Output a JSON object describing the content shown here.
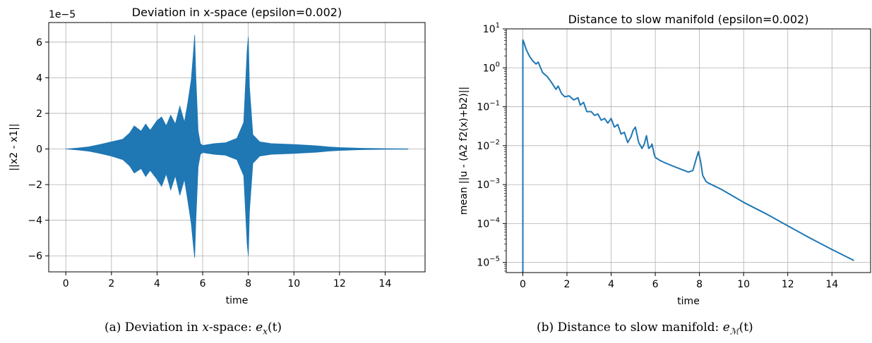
{
  "chart_data": [
    {
      "type": "area",
      "title": "Deviation in x-space (epsilon=0.002)",
      "xlabel": "time",
      "ylabel": "||x2 - x1||",
      "offset_text": "1e−5",
      "xlim": [
        -0.75,
        15.75
      ],
      "ylim": [
        -6.9e-05,
        7.1e-05
      ],
      "xticks": [
        0,
        2,
        4,
        6,
        8,
        10,
        12,
        14
      ],
      "yticks": [
        -6,
        -4,
        -2,
        0,
        2,
        4,
        6
      ],
      "ytick_labels": [
        "−6",
        "−4",
        "−2",
        "0",
        "2",
        "4",
        "6"
      ],
      "grid": true,
      "color": "#1f77b4",
      "series": [
        {
          "x": [
            0,
            0.5,
            1.0,
            1.5,
            2.0,
            2.5,
            2.8,
            3.0,
            3.3,
            3.5,
            3.7,
            4.0,
            4.2,
            4.4,
            4.6,
            4.8,
            5.0,
            5.2,
            5.35,
            5.5,
            5.6,
            5.65,
            5.7,
            5.8,
            5.9,
            6.0,
            6.5,
            7.0,
            7.5,
            7.8,
            7.95,
            8.0,
            8.05,
            8.2,
            8.5,
            9.0,
            10.0,
            11.0,
            11.5,
            12.0,
            13.0,
            14.0,
            15.0
          ],
          "upper": [
            0.0,
            5e-07,
            1.2e-06,
            2.5e-06,
            4e-06,
            5.5e-06,
            9e-06,
            1.3e-05,
            1e-05,
            1.4e-05,
            1.05e-05,
            1.6e-05,
            1.8e-05,
            1.3e-05,
            1.9e-05,
            1.4e-05,
            2.4e-05,
            1.5e-05,
            2.6e-05,
            3.9e-05,
            5.5e-05,
            6.4e-05,
            4e-05,
            1e-05,
            3e-06,
            2e-06,
            3e-06,
            3.5e-06,
            6e-06,
            1.5e-05,
            5.5e-05,
            6.3e-05,
            3.5e-05,
            8e-06,
            4e-06,
            3e-06,
            2.5e-06,
            1.8e-06,
            1.2e-06,
            8e-07,
            4e-07,
            2e-07,
            1e-07
          ],
          "lower": [
            0.0,
            -5e-07,
            -1.2e-06,
            -2.5e-06,
            -4e-06,
            -6e-06,
            -9.5e-06,
            -1.35e-05,
            -1.1e-05,
            -1.55e-05,
            -1.2e-05,
            -1.7e-05,
            -2.1e-05,
            -1.4e-05,
            -2.3e-05,
            -1.5e-05,
            -2.6e-05,
            -1.7e-05,
            -2.9e-05,
            -4.2e-05,
            -5.5e-05,
            -6.1e-05,
            -4e-05,
            -1e-05,
            -3e-06,
            -2e-06,
            -3e-06,
            -3.5e-06,
            -6e-06,
            -1.5e-05,
            -5.3e-05,
            -6e-05,
            -3.5e-05,
            -8e-06,
            -4e-06,
            -3e-06,
            -2.5e-06,
            -1.8e-06,
            -1.2e-06,
            -8e-07,
            -4e-07,
            -2e-07,
            -1e-07
          ]
        }
      ]
    },
    {
      "type": "line",
      "title": "Distance to slow manifold (epsilon=0.002)",
      "xlabel": "time",
      "ylabel": "mean ||u - (A2 f2(x)+b2)||",
      "y_scale": "log",
      "xlim": [
        -0.75,
        15.75
      ],
      "ylim": [
        5.5e-06,
        10
      ],
      "xticks": [
        0,
        2,
        4,
        6,
        8,
        10,
        12,
        14
      ],
      "yticks": [
        1e-05,
        0.0001,
        0.001,
        0.01,
        0.1,
        1.0,
        10.0
      ],
      "ytick_exponents": [
        "−5",
        "−4",
        "−3",
        "−2",
        "−1",
        "0",
        "1"
      ],
      "grid": true,
      "color": "#1f77b4",
      "series": [
        {
          "x": [
            0.0,
            0.0,
            0.05,
            0.15,
            0.3,
            0.45,
            0.6,
            0.7,
            0.9,
            1.1,
            1.3,
            1.5,
            1.6,
            1.75,
            1.9,
            2.1,
            2.3,
            2.5,
            2.6,
            2.75,
            2.9,
            3.1,
            3.25,
            3.4,
            3.55,
            3.7,
            3.85,
            4.0,
            4.15,
            4.3,
            4.45,
            4.6,
            4.75,
            4.9,
            5.0,
            5.1,
            5.25,
            5.4,
            5.5,
            5.6,
            5.7,
            5.8,
            5.85,
            5.95,
            6.0,
            6.2,
            6.5,
            7.0,
            7.5,
            7.7,
            7.85,
            7.95,
            8.05,
            8.15,
            8.3,
            8.4,
            9.0,
            10.0,
            11.0,
            12.0,
            13.0,
            14.0,
            15.0
          ],
          "y": [
            5.5e-06,
            5.2,
            4.5,
            3.0,
            2.0,
            1.5,
            1.25,
            1.4,
            0.75,
            0.6,
            0.42,
            0.28,
            0.34,
            0.22,
            0.18,
            0.19,
            0.15,
            0.17,
            0.11,
            0.13,
            0.075,
            0.075,
            0.06,
            0.065,
            0.045,
            0.05,
            0.038,
            0.05,
            0.03,
            0.035,
            0.02,
            0.022,
            0.012,
            0.017,
            0.025,
            0.03,
            0.012,
            0.0085,
            0.011,
            0.018,
            0.0085,
            0.0095,
            0.011,
            0.006,
            0.005,
            0.0042,
            0.0035,
            0.0027,
            0.0021,
            0.0023,
            0.0045,
            0.007,
            0.004,
            0.0017,
            0.0012,
            0.0011,
            0.00075,
            0.00035,
            0.00018,
            8.75e-05,
            4.25e-05,
            2.15e-05,
            1.12e-05
          ]
        }
      ]
    }
  ],
  "captions": {
    "a_prefix": "(a) Deviation in ",
    "a_math_var": "x",
    "a_suffix": "-space: ",
    "a_math": "e",
    "a_sub": "x",
    "a_arg": "(t)",
    "b_prefix": "(b) Distance to slow manifold: ",
    "b_math": "e",
    "b_sub": "ℳ",
    "b_arg": "(t)"
  }
}
